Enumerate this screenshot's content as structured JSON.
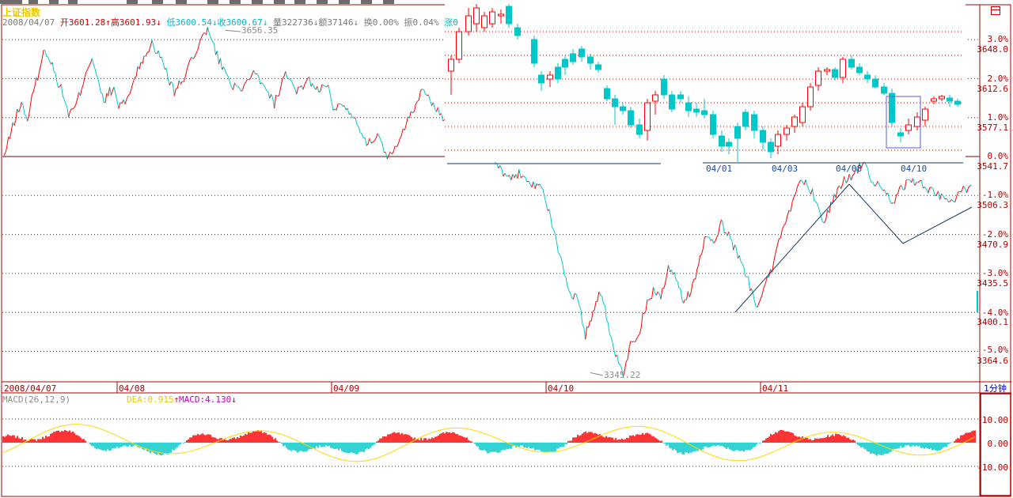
{
  "title": "上证指数",
  "info_bar": {
    "date": "2008/04/07",
    "open_label": "开",
    "open": "3601.28",
    "open_arrow": "↑",
    "high_label": "高",
    "high": "3601.93",
    "high_arrow": "↓",
    "low_label": "低",
    "low": "3600.54",
    "low_arrow": "↓",
    "close_label": "收",
    "close": "3600.67",
    "close_arrow": "↓",
    "volume_label": "量",
    "volume": "322736",
    "volume_arrow": "↓",
    "amount_label": "额",
    "amount": "37146",
    "amount_arrow": "↓",
    "turnover_label": "换",
    "turnover": "0.00%",
    "amplitude_label": "振",
    "amplitude": "0.04%",
    "change_label": "涨",
    "change": "0"
  },
  "price_axis": {
    "percent_ticks": [
      "3.0%",
      "2.0%",
      "1.0%",
      "0.0%",
      "-1.0%",
      "-2.0%",
      "-3.0%",
      "-4.0%",
      "-5.0%"
    ],
    "price_ticks": [
      "3648.0",
      "3612.6",
      "3577.1",
      "3541.7",
      "3506.3",
      "3470.9",
      "3435.5",
      "3400.1",
      "3364.6"
    ]
  },
  "annotations": {
    "max": "3656.35",
    "min": "3345.22"
  },
  "date_axis": [
    "2008/04/07",
    "04/08",
    "04/09",
    "04/10",
    "04/11"
  ],
  "period_label": "1分钟",
  "macd_header": {
    "name": "MACD(26,12,9)",
    "dea_label": "DEA:0.915",
    "dea_arrow": "↑",
    "macd_label": "MACD:4.130",
    "macd_arrow": "↓"
  },
  "macd_axis": [
    "10.00",
    "0.00",
    "-10.00"
  ],
  "inset": {
    "date_labels": [
      "04/01",
      "04/03",
      "04/08",
      "04/10"
    ]
  },
  "colors": {
    "up": "#ff0000",
    "down": "#00c8c8",
    "macd_line": "#ffd800",
    "magenta": "#ff00ff",
    "axis_red": "#b00000",
    "grid": "#c00000",
    "trend": "#1a3a66",
    "box": "#5b5bd6"
  },
  "chart_data": {
    "type": "line",
    "title": "上证指数",
    "interval": "1分钟",
    "ylim": [
      3330,
      3665
    ],
    "prev_close": 3541.7,
    "high": 3656.35,
    "low": 3345.22,
    "x": [
      "2008/04/07",
      "04/08",
      "04/09",
      "04/10",
      "04/11"
    ],
    "price_by_day": [
      {
        "date": "2008/04/07",
        "points": [
          3541,
          3560,
          3578,
          3590,
          3575,
          3600,
          3620,
          3640,
          3628,
          3612,
          3600,
          3580,
          3585,
          3600,
          3620,
          3632,
          3610,
          3590,
          3602,
          3600
        ]
      },
      {
        "date": "04/08",
        "points": [
          3585,
          3600,
          3628,
          3645,
          3625,
          3600,
          3615,
          3640,
          3656,
          3630,
          3610,
          3598,
          3620,
          3605,
          3590,
          3615,
          3600,
          3612,
          3602,
          3612
        ]
      },
      {
        "date": "04/09",
        "points": [
          3585,
          3590,
          3575,
          3555,
          3560,
          3540,
          3558,
          3582,
          3600,
          3590,
          3575,
          3568,
          3560,
          3555,
          3540,
          3530,
          3520,
          3528,
          3516,
          3510
        ]
      },
      {
        "date": "04/10",
        "points": [
          3495,
          3470,
          3440,
          3420,
          3410,
          3380,
          3400,
          3420,
          3390,
          3360,
          3345,
          3370,
          3380,
          3405,
          3420,
          3415,
          3440,
          3430,
          3410,
          3420,
          3445,
          3470,
          3460,
          3480,
          3470,
          3455,
          3440,
          3420,
          3400
        ]
      },
      {
        "date": "04/11",
        "points": [
          3420,
          3440,
          3475,
          3500,
          3520,
          3510,
          3480,
          3500,
          3520,
          3525,
          3535,
          3520,
          3510,
          3500,
          3515,
          3520,
          3515,
          3510,
          3505,
          3500,
          3512,
          3515
        ]
      }
    ],
    "trendlines": [
      {
        "from": [
          "04/10",
          3400
        ],
        "to": [
          "04/11",
          3528
        ]
      },
      {
        "from": [
          "04/11",
          3528
        ],
        "to": [
          "04/11",
          3488
        ]
      },
      {
        "from": [
          "04/11",
          3488
        ],
        "to": [
          "04/11",
          3506
        ]
      }
    ]
  }
}
